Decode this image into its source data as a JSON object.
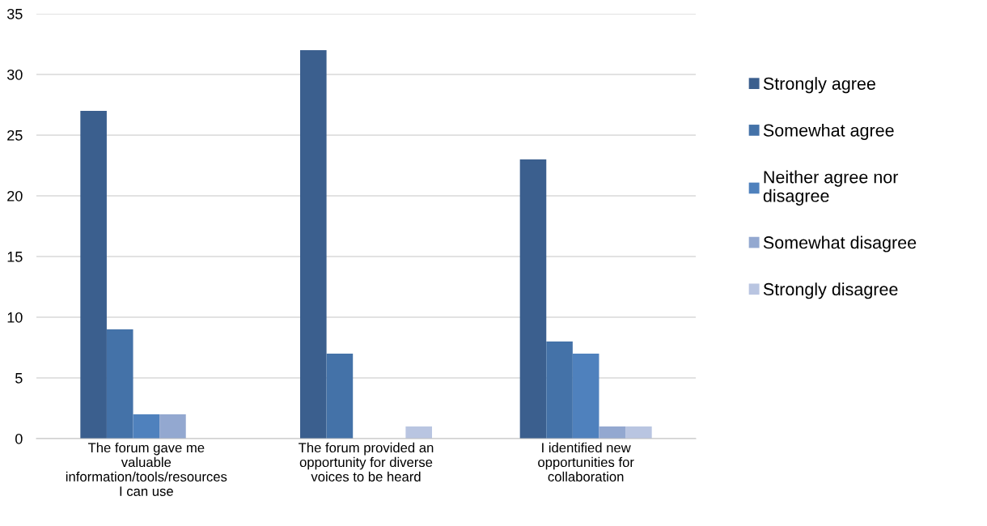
{
  "chart_data": {
    "type": "bar",
    "categories": [
      "The forum gave me valuable information/tools/resources I can use",
      "The forum provided an opportunity for diverse voices to be heard",
      "I identified new opportunities for collaboration"
    ],
    "series": [
      {
        "name": "Strongly agree",
        "color": "#3b5f8e",
        "values": [
          27,
          32,
          23
        ]
      },
      {
        "name": "Somewhat agree",
        "color": "#4472a8",
        "values": [
          9,
          7,
          8
        ]
      },
      {
        "name": "Neither agree nor disagree",
        "color": "#4f81bd",
        "values": [
          2,
          0,
          7
        ]
      },
      {
        "name": "Somewhat disagree",
        "color": "#93a8d0",
        "values": [
          2,
          0,
          1
        ]
      },
      {
        "name": "Strongly disagree",
        "color": "#b9c5e1",
        "values": [
          0,
          1,
          1
        ]
      }
    ],
    "ylim": [
      0,
      35
    ],
    "yticks": [
      0,
      5,
      10,
      15,
      20,
      25,
      30,
      35
    ],
    "grid": "y",
    "legend": "right"
  }
}
